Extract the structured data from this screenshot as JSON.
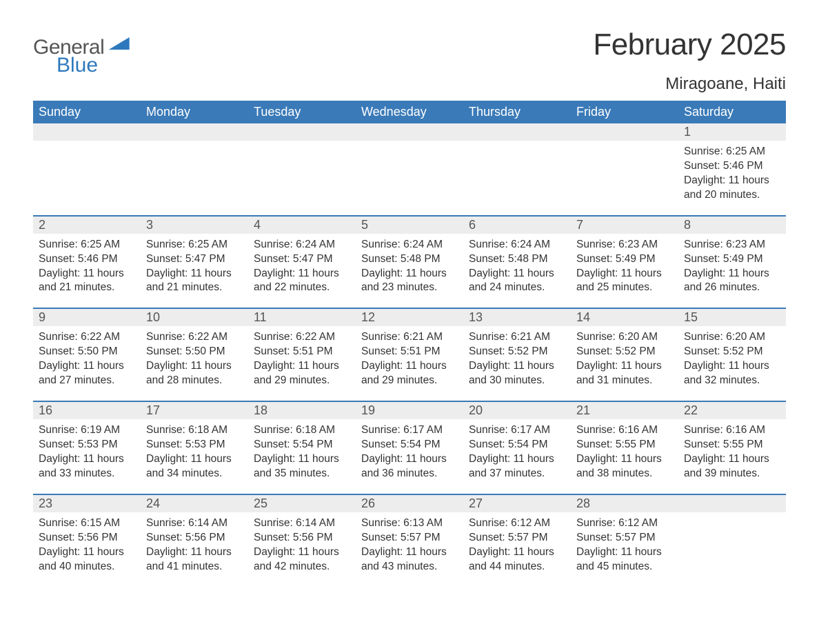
{
  "logo": {
    "word1": "General",
    "word2": "Blue"
  },
  "title": "February 2025",
  "location": "Miragoane, Haiti",
  "colors": {
    "header_bg": "#3a7ab8",
    "header_text": "#ffffff",
    "daynum_bg": "#ededed",
    "daynum_text": "#555555",
    "body_text": "#333333",
    "rule": "#3a7ab8",
    "logo_blue": "#2e79bd"
  },
  "typography": {
    "title_fontsize": 44,
    "location_fontsize": 24,
    "header_fontsize": 18,
    "daynum_fontsize": 18,
    "body_fontsize": 15.5
  },
  "day_headers": [
    "Sunday",
    "Monday",
    "Tuesday",
    "Wednesday",
    "Thursday",
    "Friday",
    "Saturday"
  ],
  "weeks": [
    [
      null,
      null,
      null,
      null,
      null,
      null,
      {
        "num": "1",
        "sunrise": "Sunrise: 6:25 AM",
        "sunset": "Sunset: 5:46 PM",
        "daylight1": "Daylight: 11 hours",
        "daylight2": "and 20 minutes."
      }
    ],
    [
      {
        "num": "2",
        "sunrise": "Sunrise: 6:25 AM",
        "sunset": "Sunset: 5:46 PM",
        "daylight1": "Daylight: 11 hours",
        "daylight2": "and 21 minutes."
      },
      {
        "num": "3",
        "sunrise": "Sunrise: 6:25 AM",
        "sunset": "Sunset: 5:47 PM",
        "daylight1": "Daylight: 11 hours",
        "daylight2": "and 21 minutes."
      },
      {
        "num": "4",
        "sunrise": "Sunrise: 6:24 AM",
        "sunset": "Sunset: 5:47 PM",
        "daylight1": "Daylight: 11 hours",
        "daylight2": "and 22 minutes."
      },
      {
        "num": "5",
        "sunrise": "Sunrise: 6:24 AM",
        "sunset": "Sunset: 5:48 PM",
        "daylight1": "Daylight: 11 hours",
        "daylight2": "and 23 minutes."
      },
      {
        "num": "6",
        "sunrise": "Sunrise: 6:24 AM",
        "sunset": "Sunset: 5:48 PM",
        "daylight1": "Daylight: 11 hours",
        "daylight2": "and 24 minutes."
      },
      {
        "num": "7",
        "sunrise": "Sunrise: 6:23 AM",
        "sunset": "Sunset: 5:49 PM",
        "daylight1": "Daylight: 11 hours",
        "daylight2": "and 25 minutes."
      },
      {
        "num": "8",
        "sunrise": "Sunrise: 6:23 AM",
        "sunset": "Sunset: 5:49 PM",
        "daylight1": "Daylight: 11 hours",
        "daylight2": "and 26 minutes."
      }
    ],
    [
      {
        "num": "9",
        "sunrise": "Sunrise: 6:22 AM",
        "sunset": "Sunset: 5:50 PM",
        "daylight1": "Daylight: 11 hours",
        "daylight2": "and 27 minutes."
      },
      {
        "num": "10",
        "sunrise": "Sunrise: 6:22 AM",
        "sunset": "Sunset: 5:50 PM",
        "daylight1": "Daylight: 11 hours",
        "daylight2": "and 28 minutes."
      },
      {
        "num": "11",
        "sunrise": "Sunrise: 6:22 AM",
        "sunset": "Sunset: 5:51 PM",
        "daylight1": "Daylight: 11 hours",
        "daylight2": "and 29 minutes."
      },
      {
        "num": "12",
        "sunrise": "Sunrise: 6:21 AM",
        "sunset": "Sunset: 5:51 PM",
        "daylight1": "Daylight: 11 hours",
        "daylight2": "and 29 minutes."
      },
      {
        "num": "13",
        "sunrise": "Sunrise: 6:21 AM",
        "sunset": "Sunset: 5:52 PM",
        "daylight1": "Daylight: 11 hours",
        "daylight2": "and 30 minutes."
      },
      {
        "num": "14",
        "sunrise": "Sunrise: 6:20 AM",
        "sunset": "Sunset: 5:52 PM",
        "daylight1": "Daylight: 11 hours",
        "daylight2": "and 31 minutes."
      },
      {
        "num": "15",
        "sunrise": "Sunrise: 6:20 AM",
        "sunset": "Sunset: 5:52 PM",
        "daylight1": "Daylight: 11 hours",
        "daylight2": "and 32 minutes."
      }
    ],
    [
      {
        "num": "16",
        "sunrise": "Sunrise: 6:19 AM",
        "sunset": "Sunset: 5:53 PM",
        "daylight1": "Daylight: 11 hours",
        "daylight2": "and 33 minutes."
      },
      {
        "num": "17",
        "sunrise": "Sunrise: 6:18 AM",
        "sunset": "Sunset: 5:53 PM",
        "daylight1": "Daylight: 11 hours",
        "daylight2": "and 34 minutes."
      },
      {
        "num": "18",
        "sunrise": "Sunrise: 6:18 AM",
        "sunset": "Sunset: 5:54 PM",
        "daylight1": "Daylight: 11 hours",
        "daylight2": "and 35 minutes."
      },
      {
        "num": "19",
        "sunrise": "Sunrise: 6:17 AM",
        "sunset": "Sunset: 5:54 PM",
        "daylight1": "Daylight: 11 hours",
        "daylight2": "and 36 minutes."
      },
      {
        "num": "20",
        "sunrise": "Sunrise: 6:17 AM",
        "sunset": "Sunset: 5:54 PM",
        "daylight1": "Daylight: 11 hours",
        "daylight2": "and 37 minutes."
      },
      {
        "num": "21",
        "sunrise": "Sunrise: 6:16 AM",
        "sunset": "Sunset: 5:55 PM",
        "daylight1": "Daylight: 11 hours",
        "daylight2": "and 38 minutes."
      },
      {
        "num": "22",
        "sunrise": "Sunrise: 6:16 AM",
        "sunset": "Sunset: 5:55 PM",
        "daylight1": "Daylight: 11 hours",
        "daylight2": "and 39 minutes."
      }
    ],
    [
      {
        "num": "23",
        "sunrise": "Sunrise: 6:15 AM",
        "sunset": "Sunset: 5:56 PM",
        "daylight1": "Daylight: 11 hours",
        "daylight2": "and 40 minutes."
      },
      {
        "num": "24",
        "sunrise": "Sunrise: 6:14 AM",
        "sunset": "Sunset: 5:56 PM",
        "daylight1": "Daylight: 11 hours",
        "daylight2": "and 41 minutes."
      },
      {
        "num": "25",
        "sunrise": "Sunrise: 6:14 AM",
        "sunset": "Sunset: 5:56 PM",
        "daylight1": "Daylight: 11 hours",
        "daylight2": "and 42 minutes."
      },
      {
        "num": "26",
        "sunrise": "Sunrise: 6:13 AM",
        "sunset": "Sunset: 5:57 PM",
        "daylight1": "Daylight: 11 hours",
        "daylight2": "and 43 minutes."
      },
      {
        "num": "27",
        "sunrise": "Sunrise: 6:12 AM",
        "sunset": "Sunset: 5:57 PM",
        "daylight1": "Daylight: 11 hours",
        "daylight2": "and 44 minutes."
      },
      {
        "num": "28",
        "sunrise": "Sunrise: 6:12 AM",
        "sunset": "Sunset: 5:57 PM",
        "daylight1": "Daylight: 11 hours",
        "daylight2": "and 45 minutes."
      },
      null
    ]
  ]
}
